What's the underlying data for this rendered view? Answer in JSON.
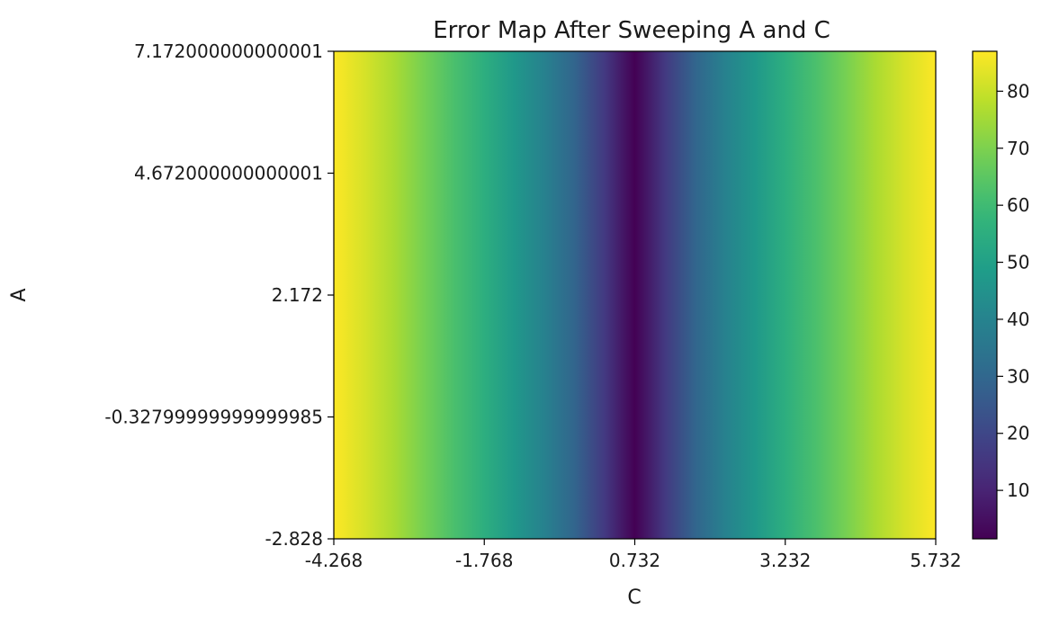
{
  "chart_data": {
    "type": "heatmap",
    "title": "Error Map After Sweeping A and C",
    "xlabel": "C",
    "ylabel": "A",
    "xlim": [
      -4.268,
      5.732
    ],
    "ylim": [
      -2.828,
      7.172
    ],
    "x_ticks": [
      {
        "value": -4.268,
        "label": "-4.268"
      },
      {
        "value": -1.768,
        "label": "-1.768"
      },
      {
        "value": 0.732,
        "label": "0.732"
      },
      {
        "value": 3.232,
        "label": "3.232"
      },
      {
        "value": 5.732,
        "label": "5.732"
      }
    ],
    "y_ticks": [
      {
        "value": -2.828,
        "label": "-2.828"
      },
      {
        "value": -0.328,
        "label": "-0.32799999999999985"
      },
      {
        "value": 2.172,
        "label": "2.172"
      },
      {
        "value": 4.672,
        "label": "4.672000000000001"
      },
      {
        "value": 7.172,
        "label": "7.172000000000001"
      }
    ],
    "colormap": "viridis",
    "color_range": [
      1.5,
      87
    ],
    "colorbar_ticks": [
      {
        "value": 10,
        "label": "10"
      },
      {
        "value": 20,
        "label": "20"
      },
      {
        "value": 30,
        "label": "30"
      },
      {
        "value": 40,
        "label": "40"
      },
      {
        "value": 50,
        "label": "50"
      },
      {
        "value": 60,
        "label": "60"
      },
      {
        "value": 70,
        "label": "70"
      },
      {
        "value": 80,
        "label": "80"
      }
    ],
    "grid": false,
    "description_of_values": "error depends only on C, minimum near C=0.732, increasing toward both edges",
    "column_values": {
      "c": [
        -4.268,
        -3.768,
        -3.268,
        -2.768,
        -2.268,
        -1.768,
        -1.268,
        -0.768,
        -0.268,
        0.232,
        0.732,
        1.232,
        1.732,
        2.232,
        2.732,
        3.232,
        3.732,
        4.232,
        4.732,
        5.232,
        5.732
      ],
      "error": [
        87,
        82,
        76,
        69,
        62,
        55,
        47,
        39,
        29,
        16,
        1.5,
        16,
        29,
        39,
        47,
        55,
        62,
        69,
        76,
        82,
        87
      ]
    }
  }
}
